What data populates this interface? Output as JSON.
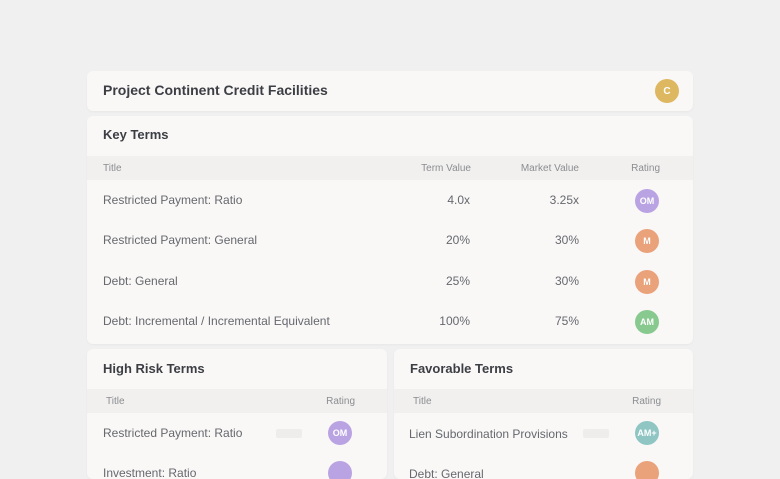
{
  "header": {
    "title": "Project Continent Credit Facilities",
    "avatar": {
      "initials": "C",
      "color": "#ddb860"
    }
  },
  "key_terms": {
    "title": "Key Terms",
    "columns": {
      "title": "Title",
      "term_value": "Term Value",
      "market_value": "Market Value",
      "rating": "Rating"
    },
    "rows": [
      {
        "title": "Restricted Payment: Ratio",
        "term_value": "4.0x",
        "market_value": "3.25x",
        "rating": "OM",
        "rating_color": "#b9a3e3"
      },
      {
        "title": "Restricted Payment: General",
        "term_value": "20%",
        "market_value": "30%",
        "rating": "M",
        "rating_color": "#e9a27a"
      },
      {
        "title": "Debt: General",
        "term_value": "25%",
        "market_value": "30%",
        "rating": "M",
        "rating_color": "#e9a27a"
      },
      {
        "title": "Debt: Incremental / Incremental Equivalent",
        "term_value": "100%",
        "market_value": "75%",
        "rating": "AM",
        "rating_color": "#87c98e"
      }
    ]
  },
  "high_risk_terms": {
    "title": "High Risk Terms",
    "columns": {
      "title": "Title",
      "rating": "Rating"
    },
    "rows": [
      {
        "title": "Restricted Payment: Ratio",
        "rating": "OM",
        "rating_color": "#b9a3e3"
      },
      {
        "title": "Investment: Ratio",
        "rating": "",
        "rating_color": "#b9a3e3"
      }
    ]
  },
  "favorable_terms": {
    "title": "Favorable Terms",
    "columns": {
      "title": "Title",
      "rating": "Rating"
    },
    "rows": [
      {
        "title": "Lien Subordination Provisions",
        "rating": "AM+",
        "rating_color": "#8fc6c4"
      },
      {
        "title": "Debt: General",
        "rating": "",
        "rating_color": "#e9a27a"
      }
    ]
  }
}
